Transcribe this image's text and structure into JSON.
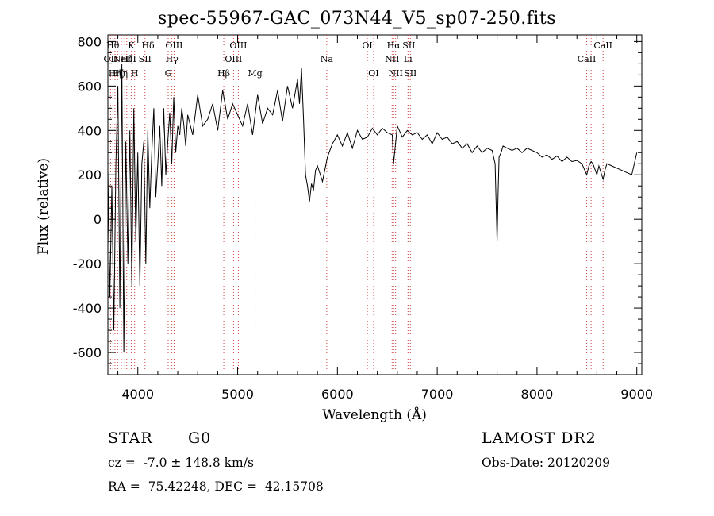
{
  "chart_data": {
    "type": "line",
    "title": "spec-55967-GAC_073N44_V5_sp07-250.fits",
    "xlabel": "Wavelength (Å)",
    "ylabel": "Flux (relative)",
    "xlim": [
      3700,
      9050
    ],
    "ylim": [
      -700,
      830
    ],
    "xticks": [
      4000,
      5000,
      6000,
      7000,
      8000,
      9000
    ],
    "yticks": [
      -600,
      -400,
      -200,
      0,
      200,
      400,
      600,
      800
    ],
    "grid": false,
    "series": [
      {
        "x": [
          3700,
          3720,
          3740,
          3760,
          3780,
          3800,
          3820,
          3840,
          3860,
          3880,
          3900,
          3920,
          3940,
          3960,
          3980,
          4000,
          4020,
          4040,
          4060,
          4080,
          4100,
          4120,
          4140,
          4160,
          4180,
          4200,
          4220,
          4240,
          4260,
          4280,
          4300,
          4320,
          4340,
          4360,
          4380,
          4400,
          4420,
          4440,
          4460,
          4480,
          4500,
          4550,
          4600,
          4650,
          4700,
          4750,
          4800,
          4850,
          4900,
          4950,
          5000,
          5050,
          5100,
          5150,
          5200,
          5250,
          5300,
          5350,
          5400,
          5450,
          5500,
          5550,
          5600,
          5620,
          5640,
          5660,
          5680,
          5700,
          5720,
          5740,
          5760,
          5780,
          5800,
          5850,
          5900,
          5950,
          6000,
          6050,
          6100,
          6150,
          6200,
          6250,
          6300,
          6350,
          6400,
          6450,
          6500,
          6550,
          6563,
          6600,
          6650,
          6700,
          6750,
          6800,
          6850,
          6900,
          6950,
          7000,
          7050,
          7100,
          7150,
          7200,
          7250,
          7300,
          7350,
          7400,
          7450,
          7500,
          7550,
          7580,
          7600,
          7610,
          7620,
          7640,
          7660,
          7700,
          7750,
          7800,
          7850,
          7900,
          7950,
          8000,
          8050,
          8100,
          8150,
          8200,
          8250,
          8300,
          8350,
          8400,
          8450,
          8498,
          8520,
          8542,
          8560,
          8600,
          8620,
          8662,
          8680,
          8700,
          8750,
          8800,
          8850,
          8900,
          8950,
          9000
        ],
        "values": [
          220,
          -350,
          150,
          -500,
          250,
          600,
          -400,
          700,
          -600,
          350,
          -200,
          400,
          -300,
          500,
          -100,
          300,
          -300,
          250,
          350,
          -200,
          400,
          50,
          300,
          500,
          100,
          250,
          420,
          150,
          500,
          200,
          350,
          480,
          250,
          550,
          300,
          420,
          380,
          500,
          430,
          330,
          470,
          380,
          560,
          420,
          450,
          520,
          400,
          580,
          450,
          520,
          470,
          420,
          520,
          380,
          560,
          430,
          500,
          470,
          580,
          440,
          600,
          500,
          630,
          520,
          680,
          450,
          200,
          150,
          80,
          160,
          130,
          220,
          240,
          170,
          280,
          340,
          380,
          330,
          390,
          320,
          400,
          360,
          370,
          410,
          380,
          410,
          390,
          380,
          250,
          420,
          370,
          400,
          380,
          390,
          360,
          380,
          340,
          390,
          360,
          370,
          340,
          350,
          320,
          340,
          300,
          330,
          300,
          320,
          310,
          250,
          -100,
          120,
          280,
          300,
          330,
          320,
          310,
          320,
          300,
          320,
          310,
          300,
          280,
          290,
          270,
          285,
          260,
          280,
          260,
          265,
          250,
          200,
          240,
          260,
          250,
          200,
          240,
          180,
          220,
          250,
          240,
          230,
          220,
          210,
          200,
          300
        ]
      }
    ],
    "lines": [
      {
        "x": 3727,
        "label": "OII",
        "row": 2
      },
      {
        "x": 3750,
        "label": "Hθ",
        "row": 1
      },
      {
        "x": 3771,
        "label": "Hη",
        "row": 3
      },
      {
        "x": 3798,
        "label": "Hζ",
        "row": 3
      },
      {
        "x": 3835,
        "label": "Hη",
        "row": 3
      },
      {
        "x": 3869,
        "label": "NeIII",
        "row": 2
      },
      {
        "x": 3889,
        "label": "Hζ",
        "row": 2
      },
      {
        "x": 3934,
        "label": "K",
        "row": 1
      },
      {
        "x": 3968,
        "label": "H",
        "row": 3
      },
      {
        "x": 4072,
        "label": "SII",
        "row": 2
      },
      {
        "x": 4102,
        "label": "Hδ",
        "row": 1
      },
      {
        "x": 4304,
        "label": "G",
        "row": 3
      },
      {
        "x": 4341,
        "label": "Hγ",
        "row": 2
      },
      {
        "x": 4363,
        "label": "OIII",
        "row": 1
      },
      {
        "x": 4861,
        "label": "Hβ",
        "row": 3
      },
      {
        "x": 4959,
        "label": "OIII",
        "row": 2
      },
      {
        "x": 5007,
        "label": "OIII",
        "row": 1
      },
      {
        "x": 5175,
        "label": "Mg",
        "row": 3
      },
      {
        "x": 5893,
        "label": "Na",
        "row": 2
      },
      {
        "x": 6300,
        "label": "OI",
        "row": 1
      },
      {
        "x": 6363,
        "label": "OI",
        "row": 3
      },
      {
        "x": 6548,
        "label": "NII",
        "row": 2
      },
      {
        "x": 6563,
        "label": "Hα",
        "row": 1
      },
      {
        "x": 6583,
        "label": "NII",
        "row": 3
      },
      {
        "x": 6707,
        "label": "Li",
        "row": 2
      },
      {
        "x": 6716,
        "label": "SII",
        "row": 1
      },
      {
        "x": 6731,
        "label": "SII",
        "row": 3
      },
      {
        "x": 8498,
        "label": "CaII",
        "row": 2
      },
      {
        "x": 8542,
        "label": "",
        "row": 0
      },
      {
        "x": 8662,
        "label": "CaII",
        "row": 1
      }
    ]
  },
  "footer": {
    "object": "STAR",
    "subclass": "G0",
    "survey": "LAMOST DR2",
    "redshift": "cz =  -7.0 ± 148.8 km/s",
    "obs_date": "Obs-Date: 20120209",
    "coords": "RA =  75.42248, DEC =  42.15708"
  }
}
